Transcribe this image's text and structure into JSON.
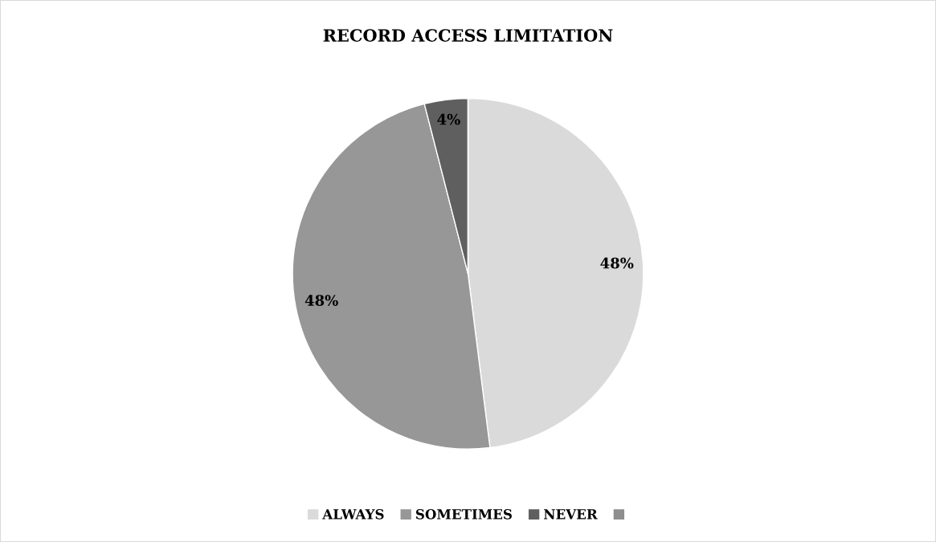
{
  "chart_data": {
    "type": "pie",
    "title": "RECORD ACCESS LIMITATION",
    "categories": [
      "ALWAYS",
      "SOMETIMES",
      "NEVER",
      null
    ],
    "values": [
      48,
      48,
      4,
      0
    ],
    "colors": [
      "#dadada",
      "#979797",
      "#5f5f5f",
      "#8e8e8e"
    ],
    "value_labels": [
      "48%",
      "48%",
      "4%",
      null
    ],
    "legend": "bottom"
  }
}
